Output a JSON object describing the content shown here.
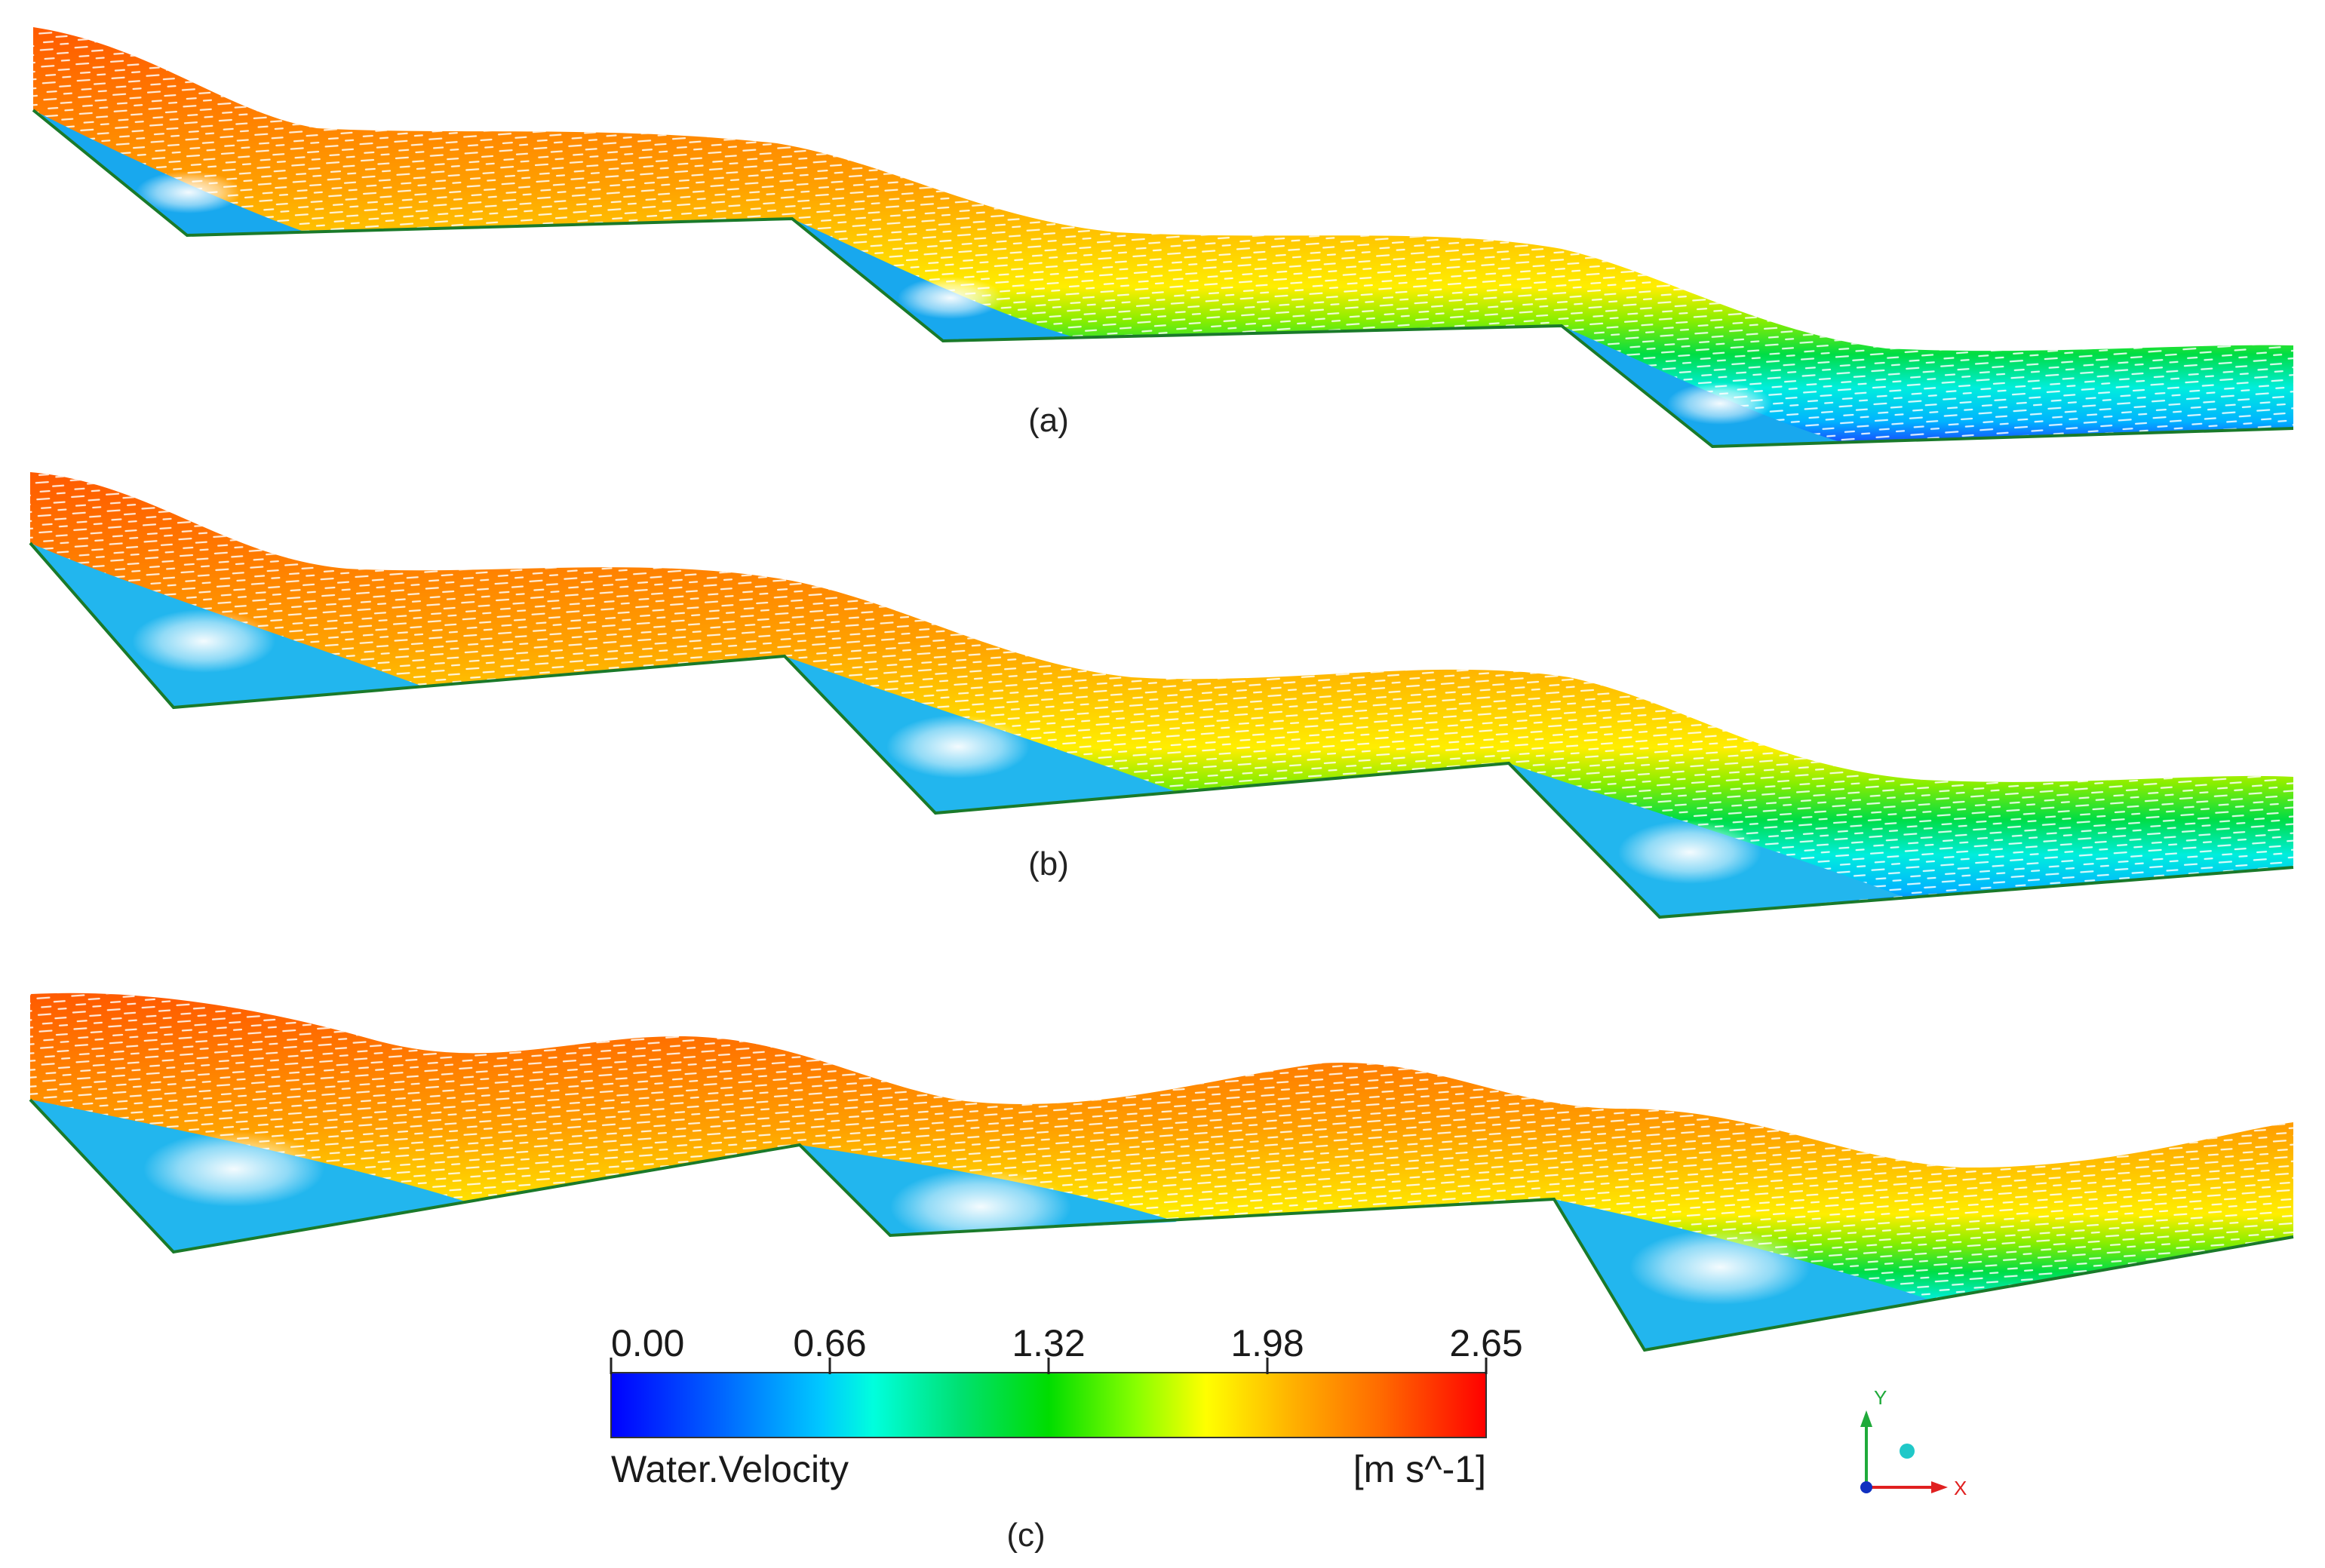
{
  "figure": {
    "panels": [
      {
        "label": "(a)"
      },
      {
        "label": "(b)"
      },
      {
        "label": "(c)"
      }
    ]
  },
  "legend": {
    "variable": "Water.Velocity",
    "units": "[m s^-1]",
    "ticks": [
      "0.00",
      "0.66",
      "1.32",
      "1.98",
      "2.65"
    ],
    "range": [
      0.0,
      2.65
    ],
    "colormap": [
      "#0000ff",
      "#0055ff",
      "#00c8ff",
      "#00ffcc",
      "#00e060",
      "#00dd00",
      "#aaff00",
      "#ffff00",
      "#ffb000",
      "#ff6000",
      "#ff0000"
    ]
  },
  "triad": {
    "y_label": "Y",
    "x_label": "X",
    "y_color": "#1faa3a",
    "x_color": "#e02020",
    "z_color": "#1030c0",
    "dot_color": "#20c8c8"
  }
}
